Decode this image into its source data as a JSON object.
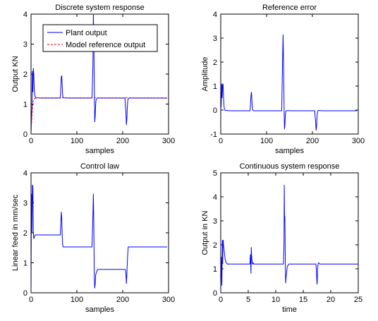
{
  "chart_data": [
    {
      "type": "line",
      "title": "Discrete system response",
      "xlabel": "samples",
      "ylabel": "Output KN",
      "xlim": [
        0,
        300
      ],
      "ylim": [
        0,
        4
      ],
      "xticks": [
        "0",
        "100",
        "200",
        "300"
      ],
      "yticks": [
        "0",
        "1",
        "2",
        "3",
        "4"
      ],
      "legend": {
        "position": "top-left",
        "entries": [
          "Plant output",
          "Model reference output"
        ]
      },
      "series": [
        {
          "name": "Plant output",
          "color": "#0000ff",
          "style": "solid",
          "x": [
            0,
            2,
            3,
            4,
            5,
            6,
            7,
            8,
            9,
            10,
            12,
            15,
            20,
            64,
            66,
            67,
            68,
            69,
            70,
            72,
            75,
            80,
            133,
            135,
            136,
            137,
            138,
            139,
            140,
            141,
            142,
            145,
            150,
            205,
            206,
            207,
            208,
            209,
            210,
            211,
            212,
            215,
            220,
            297
          ],
          "y": [
            0,
            0.9,
            2.1,
            1.4,
            2.2,
            2.0,
            1.5,
            1.3,
            1.25,
            1.22,
            1.2,
            1.21,
            1.2,
            1.2,
            1.9,
            1.95,
            1.6,
            1.3,
            1.22,
            1.2,
            1.21,
            1.2,
            1.2,
            2.3,
            4.0,
            3.1,
            1.6,
            0.4,
            0.6,
            1.0,
            1.15,
            1.21,
            1.2,
            1.2,
            0.9,
            0.75,
            0.3,
            0.5,
            0.9,
            1.1,
            1.18,
            1.21,
            1.2,
            1.2
          ]
        },
        {
          "name": "Model reference output",
          "color": "#ff0000",
          "style": "dashed",
          "x": [
            0,
            1,
            2,
            3,
            4,
            5,
            6,
            8,
            10,
            12,
            15,
            20,
            297
          ],
          "y": [
            0,
            0.3,
            0.6,
            0.85,
            1.0,
            1.1,
            1.15,
            1.19,
            1.2,
            1.21,
            1.21,
            1.21,
            1.21
          ]
        }
      ]
    },
    {
      "type": "line",
      "title": "Reference error",
      "xlabel": "samples",
      "ylabel": "Amplitude",
      "xlim": [
        0,
        300
      ],
      "ylim": [
        -1,
        4
      ],
      "xticks": [
        "0",
        "100",
        "200",
        "300"
      ],
      "yticks": [
        "-1",
        "0",
        "1",
        "2",
        "3",
        "4"
      ],
      "series": [
        {
          "color": "#0000ff",
          "style": "solid",
          "x": [
            0,
            1,
            2,
            3,
            4,
            5,
            6,
            7,
            8,
            9,
            10,
            12,
            20,
            64,
            66,
            67,
            68,
            69,
            70,
            72,
            80,
            133,
            135,
            136,
            137,
            138,
            139,
            140,
            141,
            142,
            145,
            150,
            205,
            206,
            207,
            208,
            209,
            210,
            211,
            212,
            215,
            220,
            297
          ],
          "y": [
            0,
            0.2,
            1.1,
            0.5,
            1.05,
            1.1,
            0.6,
            0.2,
            0.05,
            0.0,
            -0.02,
            -0.02,
            -0.03,
            -0.03,
            0.6,
            0.75,
            0.4,
            0.1,
            -0.01,
            -0.03,
            -0.03,
            -0.03,
            2.2,
            3.15,
            1.9,
            0.4,
            -0.8,
            -0.6,
            -0.2,
            -0.05,
            -0.02,
            -0.03,
            -0.03,
            -0.3,
            -0.45,
            -0.85,
            -0.7,
            -0.3,
            -0.1,
            -0.02,
            -0.02,
            -0.03,
            -0.03
          ]
        }
      ]
    },
    {
      "type": "line",
      "title": "Control law",
      "xlabel": "samples",
      "ylabel": "Linear feed in mm/sec",
      "xlim": [
        0,
        300
      ],
      "ylim": [
        0,
        4
      ],
      "xticks": [
        "0",
        "100",
        "200",
        "300"
      ],
      "yticks": [
        "0",
        "1",
        "2",
        "3",
        "4"
      ],
      "series": [
        {
          "color": "#0000ff",
          "style": "solid",
          "x": [
            0,
            1,
            2,
            3,
            4,
            5,
            6,
            7,
            8,
            9,
            10,
            12,
            15,
            20,
            64,
            66,
            67,
            68,
            69,
            70,
            72,
            80,
            133,
            135,
            136,
            137,
            138,
            139,
            140,
            141,
            145,
            150,
            205,
            206,
            207,
            208,
            209,
            210,
            211,
            212,
            215,
            220,
            297
          ],
          "y": [
            0,
            3.3,
            2.0,
            3.6,
            3.55,
            2.0,
            1.8,
            1.85,
            1.9,
            1.93,
            1.93,
            1.93,
            1.93,
            1.93,
            1.93,
            2.7,
            2.5,
            1.9,
            1.6,
            1.53,
            1.53,
            1.53,
            1.53,
            2.6,
            3.3,
            2.2,
            0.5,
            0.15,
            0.3,
            0.6,
            0.78,
            0.78,
            0.78,
            0.75,
            0.65,
            0.3,
            0.6,
            1.0,
            1.3,
            1.53,
            1.53,
            1.53,
            1.53
          ]
        }
      ]
    },
    {
      "type": "line",
      "title": "Continuous system response",
      "xlabel": "time",
      "ylabel": "Output in KN",
      "xlim": [
        0,
        25
      ],
      "ylim": [
        0,
        5
      ],
      "xticks": [
        "0",
        "5",
        "10",
        "15",
        "20",
        "25"
      ],
      "yticks": [
        "0",
        "1",
        "2",
        "3",
        "4",
        "5"
      ],
      "series": [
        {
          "color": "#0000ff",
          "style": "solid",
          "x": [
            0,
            0.1,
            0.2,
            0.3,
            0.35,
            0.4,
            0.45,
            0.5,
            0.6,
            0.8,
            1.0,
            1.2,
            1.5,
            5.3,
            5.4,
            5.5,
            5.55,
            5.6,
            5.7,
            5.8,
            5.9,
            6.0,
            6.3,
            11.4,
            11.5,
            11.55,
            11.6,
            11.65,
            11.7,
            11.75,
            11.8,
            11.9,
            12.1,
            12.4,
            12.8,
            17.3,
            17.4,
            17.5,
            17.55,
            17.6,
            17.7,
            17.8,
            18.0,
            18.3,
            25.0
          ],
          "y": [
            0,
            1.5,
            0.3,
            2.2,
            1.2,
            2.1,
            2.2,
            2.0,
            1.8,
            1.4,
            1.25,
            1.2,
            1.2,
            1.2,
            1.6,
            0.8,
            1.9,
            1.6,
            1.3,
            1.2,
            1.25,
            1.2,
            1.2,
            1.2,
            2.0,
            4.5,
            3.0,
            3.2,
            2.2,
            1.0,
            0.4,
            0.7,
            1.1,
            1.2,
            1.2,
            1.2,
            0.9,
            0.35,
            0.5,
            1.0,
            1.2,
            1.25,
            1.2,
            1.2,
            1.2
          ]
        }
      ]
    }
  ]
}
